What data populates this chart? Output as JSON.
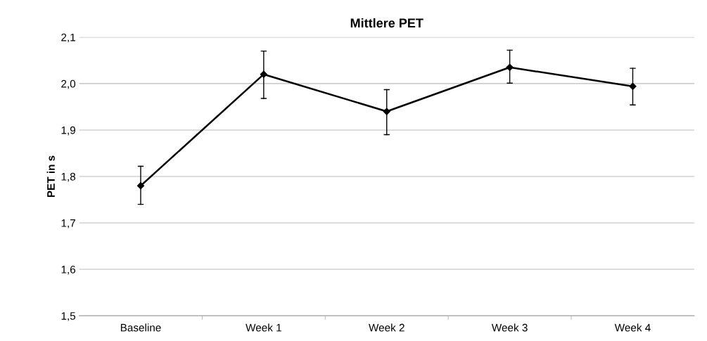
{
  "chart_data": {
    "type": "line",
    "title": "Mittlere PET",
    "ylabel": "PET in s",
    "categories": [
      "Baseline",
      "Week 1",
      "Week 2",
      "Week 3",
      "Week 4"
    ],
    "series": [
      {
        "color": "#000000",
        "values": [
          1.78,
          2.02,
          1.94,
          2.035,
          1.994
        ],
        "errors": [
          [
            1.74,
            1.822
          ],
          [
            1.968,
            2.07
          ],
          [
            1.89,
            1.987
          ],
          [
            2.001,
            2.072
          ],
          [
            1.954,
            2.033
          ]
        ]
      }
    ],
    "ylim": [
      1.5,
      2.1
    ],
    "yticks": [
      {
        "value": 1.5,
        "label": "1,5"
      },
      {
        "value": 1.6,
        "label": "1,6"
      },
      {
        "value": 1.7,
        "label": "1,7"
      },
      {
        "value": 1.8,
        "label": "1,8"
      },
      {
        "value": 1.9,
        "label": "1,9"
      },
      {
        "value": 2.0,
        "label": "2,0"
      },
      {
        "value": 2.1,
        "label": "2,1"
      }
    ],
    "grid": "y",
    "legend": false,
    "marker": "diamond",
    "line_style": "solid"
  }
}
